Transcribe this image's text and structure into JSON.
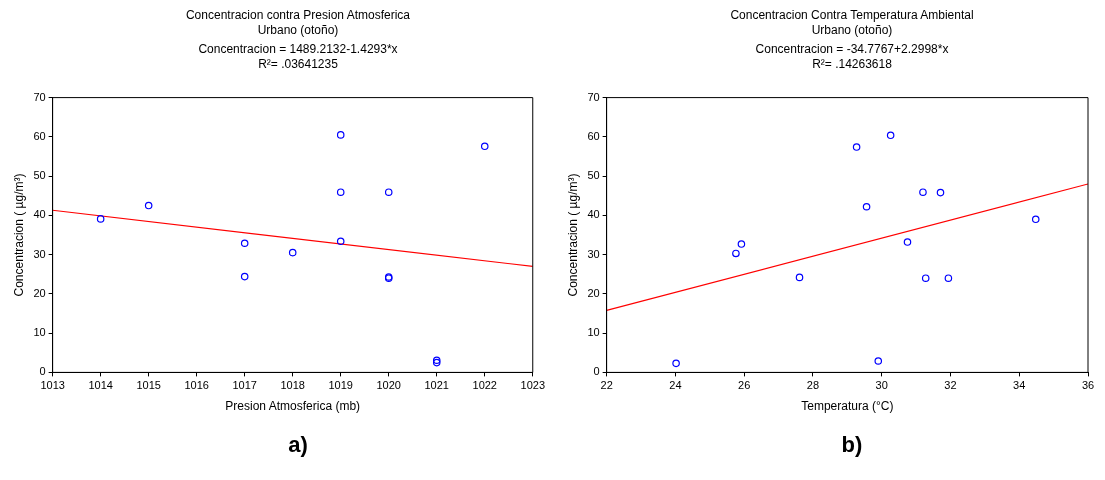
{
  "chart_data": [
    {
      "type": "scatter",
      "title": "Concentracion contra Presion Atmosferica",
      "subtitle": "Urbano (otoño)",
      "xlabel": "Presion Atmosferica (mb)",
      "ylabel": "Concentracion ( µg/m³)",
      "annotations": [
        "Concentracion = 1489.2132-1.4293*x",
        "R²=  .03641235",
        "a)"
      ],
      "xlim": [
        1013,
        1023
      ],
      "xticks": [
        1013,
        1014,
        1015,
        1016,
        1017,
        1018,
        1019,
        1020,
        1021,
        1022,
        1023
      ],
      "ylim": [
        0,
        70
      ],
      "yticks": [
        0,
        10,
        20,
        30,
        40,
        50,
        60,
        70
      ],
      "grid": false,
      "legend": false,
      "marker": "circle",
      "series": [
        {
          "type": "scatter",
          "color": "#0000ff",
          "x": [
            1014,
            1015,
            1017,
            1017,
            1018,
            1019,
            1019,
            1019,
            1020,
            1020,
            1020,
            1021,
            1021,
            1022
          ],
          "values": [
            39.1,
            42.5,
            32.9,
            24.4,
            30.5,
            60.5,
            45.9,
            33.4,
            45.9,
            24.3,
            24.0,
            3.1,
            2.5,
            57.6
          ]
        },
        {
          "type": "line",
          "color": "#ff0000",
          "marker": "none",
          "x": [
            1013,
            1023
          ],
          "values": [
            41.3,
            27.0
          ]
        }
      ]
    },
    {
      "type": "scatter",
      "title": "Concentracion Contra Temperatura Ambiental",
      "subtitle": "Urbano (otoño)",
      "xlabel": "Temperatura (°C)",
      "ylabel": "Concentracion ( µg/m³)",
      "annotations": [
        "Concentracion = -34.7767+2.2998*x",
        "R²=  .14263618",
        "b)"
      ],
      "xlim": [
        22,
        36
      ],
      "xticks": [
        22,
        24,
        26,
        28,
        30,
        32,
        34,
        36
      ],
      "ylim": [
        0,
        70
      ],
      "yticks": [
        0,
        10,
        20,
        30,
        40,
        50,
        60,
        70
      ],
      "grid": false,
      "legend": false,
      "marker": "circle",
      "series": [
        {
          "type": "scatter",
          "color": "#0000ff",
          "x": [
            24.02,
            25.76,
            25.92,
            27.61,
            29.27,
            29.56,
            29.9,
            30.26,
            30.75,
            31.2,
            31.28,
            31.71,
            31.94,
            34.48
          ],
          "values": [
            2.3,
            30.3,
            32.7,
            24.2,
            57.4,
            42.2,
            2.9,
            60.4,
            33.2,
            45.9,
            24.0,
            45.8,
            24.0,
            39.0
          ]
        },
        {
          "type": "line",
          "color": "#ff0000",
          "marker": "none",
          "x": [
            22,
            36
          ],
          "values": [
            15.8,
            48.0
          ]
        }
      ]
    }
  ]
}
